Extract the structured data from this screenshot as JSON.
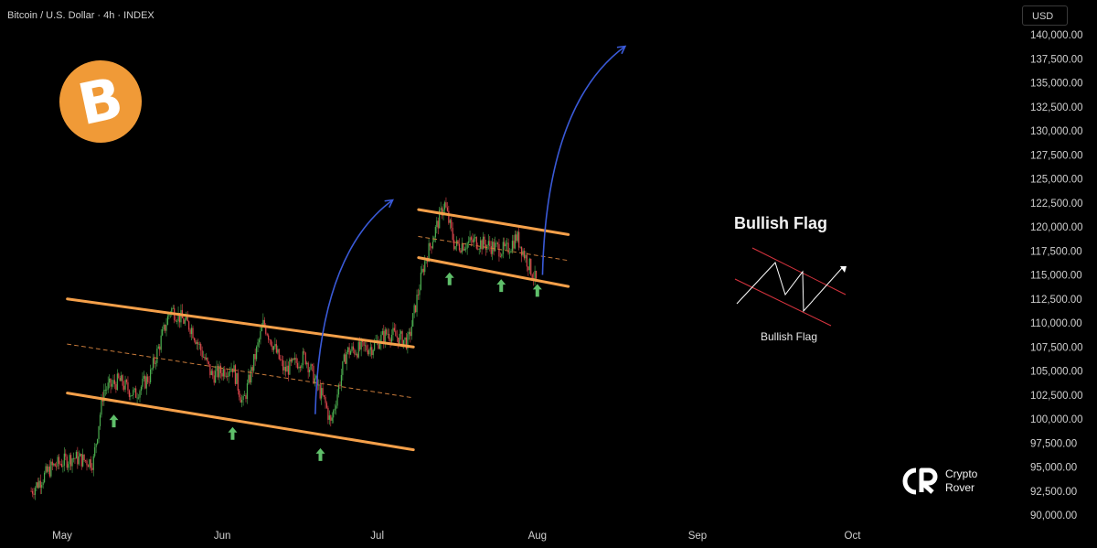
{
  "header": {
    "symbol_title": "Bitcoin / U.S. Dollar · 4h · INDEX",
    "currency_button": "USD"
  },
  "logo": {
    "icon": "bitcoin-icon",
    "symbol": "B",
    "color": "#f09a37"
  },
  "chart_data": {
    "type": "candlestick",
    "y_axis": {
      "min": 90000,
      "max": 140000,
      "step": 2500,
      "tick_labels": [
        "140,000.00",
        "137,500.00",
        "135,000.00",
        "132,500.00",
        "130,000.00",
        "127,500.00",
        "125,000.00",
        "122,500.00",
        "120,000.00",
        "117,500.00",
        "115,000.00",
        "112,500.00",
        "110,000.00",
        "107,500.00",
        "105,000.00",
        "102,500.00",
        "100,000.00",
        "97,500.00",
        "95,000.00",
        "92,500.00",
        "90,000.00"
      ]
    },
    "x_axis": {
      "tick_labels": [
        "May",
        "Jun",
        "Jul",
        "Aug",
        "Sep",
        "Oct"
      ]
    },
    "price_path": [
      {
        "date": "2025-04-25",
        "price": 92500
      },
      {
        "date": "2025-04-29",
        "price": 95000
      },
      {
        "date": "2025-05-03",
        "price": 96000
      },
      {
        "date": "2025-05-07",
        "price": 95500
      },
      {
        "date": "2025-05-09",
        "price": 103000
      },
      {
        "date": "2025-05-12",
        "price": 104000
      },
      {
        "date": "2025-05-15",
        "price": 102500
      },
      {
        "date": "2025-05-18",
        "price": 104500
      },
      {
        "date": "2025-05-22",
        "price": 111500
      },
      {
        "date": "2025-05-26",
        "price": 109500
      },
      {
        "date": "2025-05-30",
        "price": 104500
      },
      {
        "date": "2025-06-03",
        "price": 105500
      },
      {
        "date": "2025-06-05",
        "price": 101500
      },
      {
        "date": "2025-06-09",
        "price": 110000
      },
      {
        "date": "2025-06-13",
        "price": 105000
      },
      {
        "date": "2025-06-17",
        "price": 106500
      },
      {
        "date": "2025-06-21",
        "price": 101500
      },
      {
        "date": "2025-06-22",
        "price": 99500
      },
      {
        "date": "2025-06-25",
        "price": 107000
      },
      {
        "date": "2025-06-30",
        "price": 107500
      },
      {
        "date": "2025-07-03",
        "price": 109000
      },
      {
        "date": "2025-07-07",
        "price": 108000
      },
      {
        "date": "2025-07-10",
        "price": 116000
      },
      {
        "date": "2025-07-14",
        "price": 122500
      },
      {
        "date": "2025-07-16",
        "price": 118000
      },
      {
        "date": "2025-07-20",
        "price": 118500
      },
      {
        "date": "2025-07-23",
        "price": 118000
      },
      {
        "date": "2025-07-26",
        "price": 117500
      },
      {
        "date": "2025-07-28",
        "price": 119000
      },
      {
        "date": "2025-08-01",
        "price": 114000
      }
    ],
    "channel_lines": [
      {
        "name": "lower-channel-top",
        "color": "#f5a04a",
        "from": {
          "date": "2025-05-02",
          "price": 112500
        },
        "to": {
          "date": "2025-07-08",
          "price": 107500
        }
      },
      {
        "name": "lower-channel-bottom",
        "color": "#f5a04a",
        "from": {
          "date": "2025-05-02",
          "price": 102700
        },
        "to": {
          "date": "2025-07-08",
          "price": 96800
        }
      },
      {
        "name": "lower-channel-mid",
        "color": "#c77a3a",
        "dashed": true,
        "from": {
          "date": "2025-05-02",
          "price": 107800
        },
        "to": {
          "date": "2025-07-08",
          "price": 102200
        }
      },
      {
        "name": "flag-top",
        "color": "#f5a04a",
        "from": {
          "date": "2025-07-09",
          "price": 121800
        },
        "to": {
          "date": "2025-08-07",
          "price": 119200
        }
      },
      {
        "name": "flag-bottom",
        "color": "#f5a04a",
        "from": {
          "date": "2025-07-09",
          "price": 116800
        },
        "to": {
          "date": "2025-08-07",
          "price": 113800
        }
      },
      {
        "name": "flag-mid",
        "color": "#c77a3a",
        "dashed": true,
        "from": {
          "date": "2025-07-09",
          "price": 119000
        },
        "to": {
          "date": "2025-08-07",
          "price": 116500
        }
      }
    ],
    "breakout_arrows": [
      {
        "color": "#3a5ad8",
        "from": {
          "date": "2025-06-19",
          "price": 100500
        },
        "to": {
          "date": "2025-07-04",
          "price": 122800
        }
      },
      {
        "color": "#3a5ad8",
        "from": {
          "date": "2025-08-02",
          "price": 115000
        },
        "to": {
          "date": "2025-08-18",
          "price": 138800
        }
      }
    ],
    "support_markers": {
      "color": "#5fbf6a",
      "points": [
        {
          "date": "2025-05-11",
          "price": 99700
        },
        {
          "date": "2025-06-03",
          "price": 98400
        },
        {
          "date": "2025-06-20",
          "price": 96200
        },
        {
          "date": "2025-07-15",
          "price": 114500
        },
        {
          "date": "2025-07-25",
          "price": 113800
        },
        {
          "date": "2025-08-01",
          "price": 113300
        }
      ]
    },
    "colors": {
      "up": "#4caf50",
      "down": "#e0464d",
      "channel": "#f5a04a",
      "arrow": "#3a5ad8"
    }
  },
  "pattern_illustration": {
    "title": "Bullish Flag",
    "caption": "Bullish Flag",
    "line_color": "#d9343f",
    "zigzag_color": "#ffffff"
  },
  "brand": {
    "line1": "Crypto",
    "line2": "Rover"
  }
}
